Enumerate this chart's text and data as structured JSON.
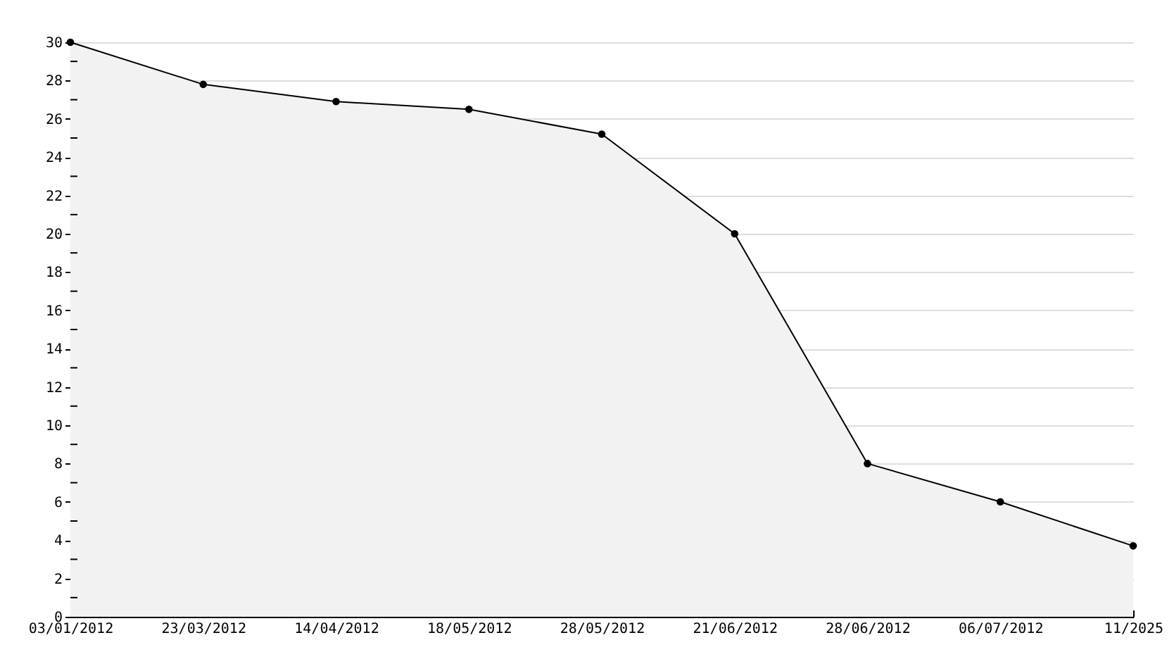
{
  "chart_data": {
    "type": "area",
    "categories": [
      "03/01/2012",
      "23/03/2012",
      "14/04/2012",
      "18/05/2012",
      "28/05/2012",
      "21/06/2012",
      "28/06/2012",
      "06/07/2012",
      "11/2025"
    ],
    "series": [
      {
        "color": "#000000",
        "values": [
          30,
          27.8,
          26.9,
          26.5,
          25.2,
          20,
          8,
          6,
          3.7
        ]
      }
    ],
    "ylim": [
      0,
      30
    ],
    "yticks": [
      0,
      {
        "value": 1,
        "label": null
      },
      2,
      {
        "value": 3,
        "label": null
      },
      4,
      {
        "value": 5,
        "label": null
      },
      6,
      {
        "value": 7,
        "label": null
      },
      8,
      {
        "value": 9,
        "label": null
      },
      10,
      {
        "value": 11,
        "label": null
      },
      12,
      {
        "value": 13,
        "label": null
      },
      14,
      {
        "value": 15,
        "label": null
      },
      16,
      {
        "value": 17,
        "label": null
      },
      18,
      {
        "value": 19,
        "label": null
      },
      20,
      {
        "value": 21,
        "label": null
      },
      22,
      {
        "value": 23,
        "label": null
      },
      24,
      {
        "value": 25,
        "label": null
      },
      26,
      {
        "value": 27,
        "label": null
      },
      28,
      {
        "value": 29,
        "label": null
      },
      30
    ],
    "grid": "y",
    "marker": "circle",
    "line_style": "solid"
  }
}
